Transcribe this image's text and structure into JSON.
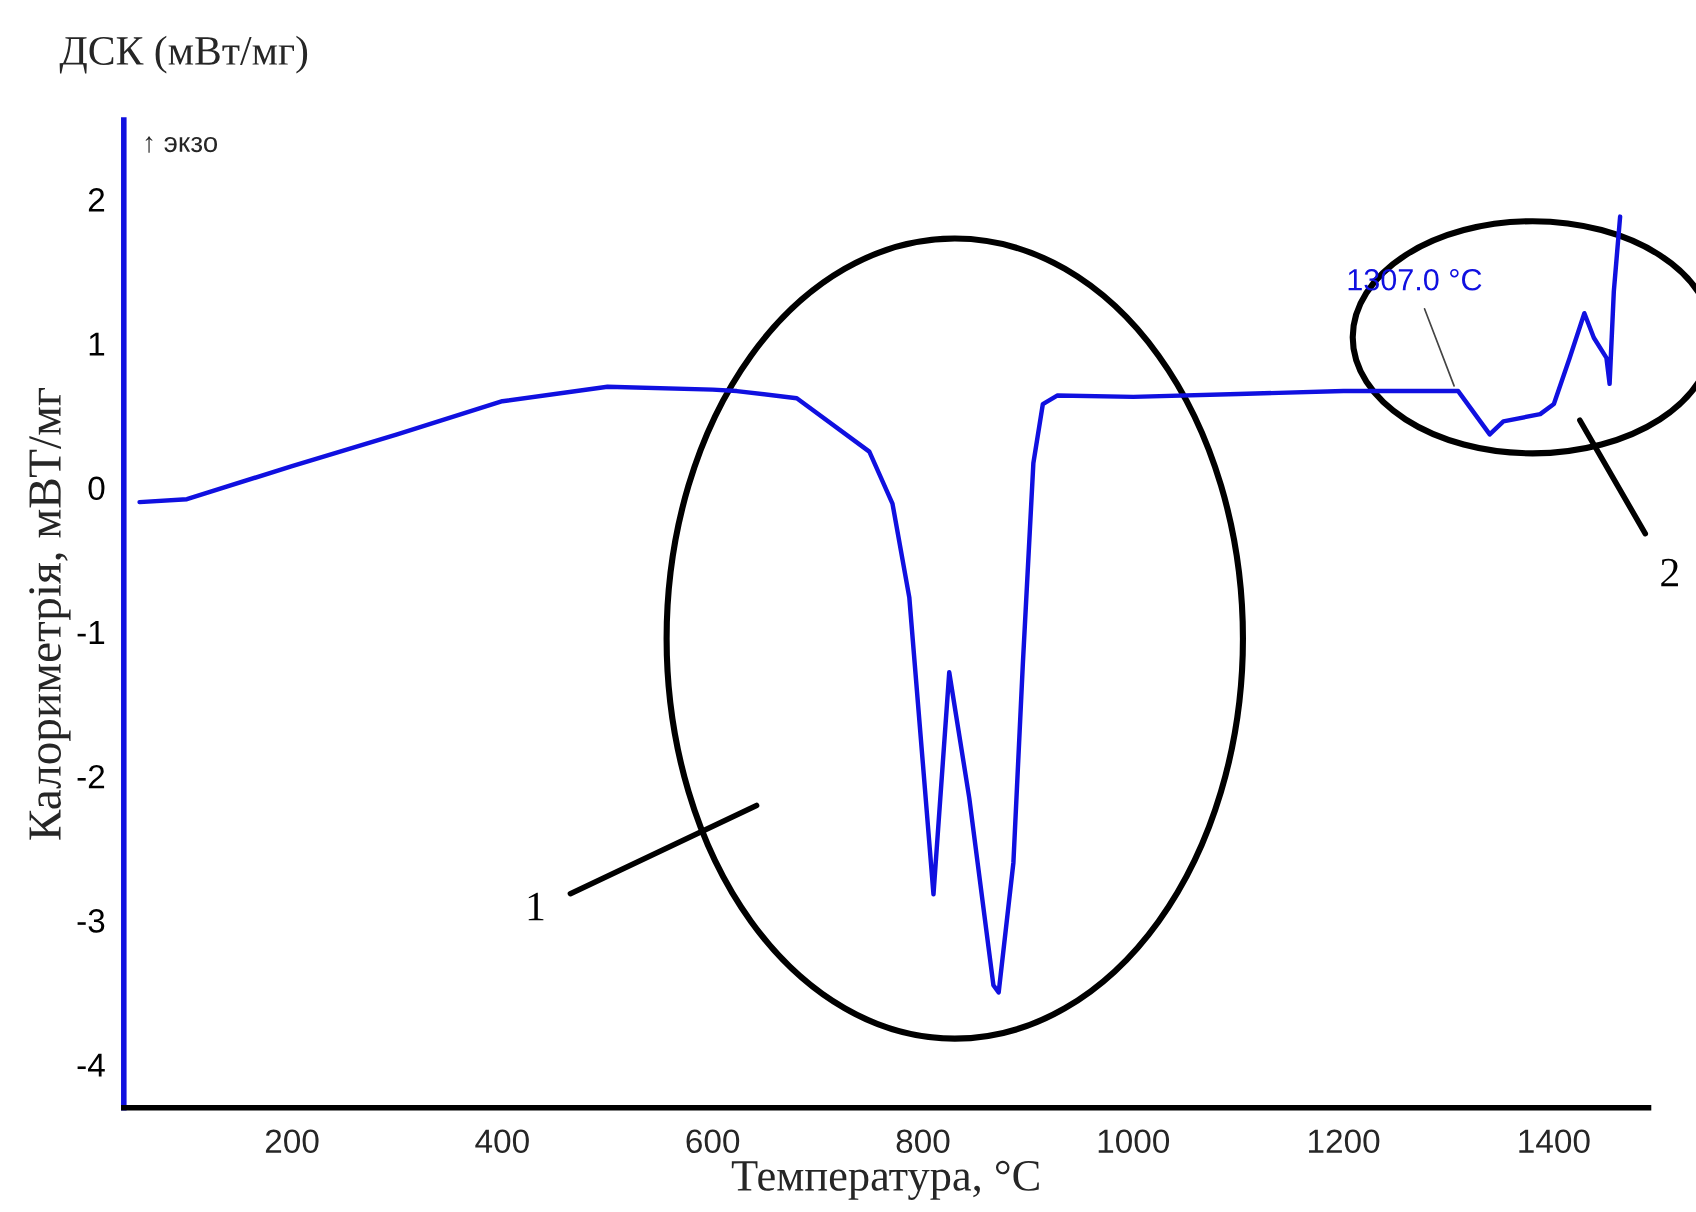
{
  "chart_data": {
    "type": "line",
    "title": "ДСК (мВт/мг)",
    "xlabel": "Температура, °C",
    "ylabel": "Калориметрія, мВТ/мг",
    "x": [
      55,
      100,
      200,
      300,
      400,
      500,
      600,
      623,
      680,
      749,
      771,
      787,
      800,
      810,
      825,
      844,
      867,
      872,
      886,
      895,
      905,
      914,
      928,
      1000,
      1100,
      1200,
      1309,
      1339,
      1352,
      1387,
      1400,
      1415,
      1429,
      1438,
      1450,
      1453,
      1457,
      1463
    ],
    "series": [
      {
        "color": "#1010e0",
        "values": [
          -0.1,
          -0.08,
          0.15,
          0.37,
          0.6,
          0.7,
          0.68,
          0.67,
          0.62,
          0.25,
          -0.11,
          -0.76,
          -1.92,
          -2.82,
          -1.28,
          -2.15,
          -3.45,
          -3.5,
          -2.6,
          -1.22,
          0.17,
          0.58,
          0.64,
          0.63,
          0.65,
          0.67,
          0.67,
          0.37,
          0.46,
          0.51,
          0.58,
          0.9,
          1.21,
          1.04,
          0.9,
          0.72,
          1.36,
          1.88
        ]
      }
    ],
    "xlim": [
      40,
      1490
    ],
    "ylim": [
      -4.3,
      2.55
    ],
    "xticks": [
      200,
      400,
      600,
      800,
      1000,
      1200,
      1400
    ],
    "yticks": [
      -4,
      -3,
      -2,
      -1,
      0,
      1,
      2
    ],
    "grid": false,
    "line_style": "solid",
    "marker": "none",
    "annotations": [
      "↑ экзо",
      {
        "text": "1307.0 °C",
        "x": 1307,
        "y": 0.67
      },
      "1",
      "2"
    ]
  }
}
